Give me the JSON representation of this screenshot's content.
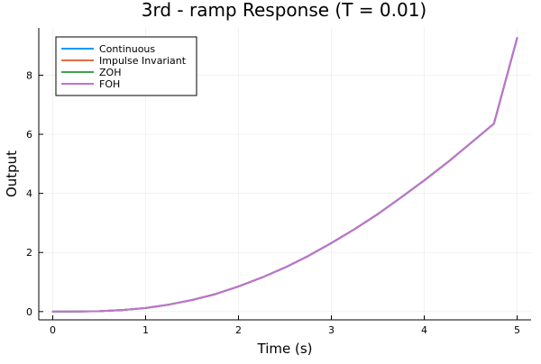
{
  "chart_data": {
    "type": "line",
    "title": "3rd - ramp Response (T = 0.01)",
    "xlabel": "Time (s)",
    "ylabel": "Output",
    "xlim": [
      -0.15,
      5.15
    ],
    "ylim": [
      -0.28,
      9.6
    ],
    "xticks": [
      0,
      1,
      2,
      3,
      4,
      5
    ],
    "yticks": [
      0,
      2,
      4,
      6,
      8
    ],
    "grid": true,
    "legend_position": "top-left",
    "x": [
      0,
      0.25,
      0.5,
      0.75,
      1.0,
      1.25,
      1.5,
      1.75,
      2.0,
      2.25,
      2.5,
      2.75,
      3.0,
      3.25,
      3.5,
      3.75,
      4.0,
      4.25,
      4.5,
      4.75,
      5.0
    ],
    "series": [
      {
        "name": "Continuous",
        "color": "#009af9",
        "values": [
          0,
          0.002,
          0.014,
          0.052,
          0.12,
          0.236,
          0.39,
          0.59,
          0.85,
          1.15,
          1.49,
          1.88,
          2.32,
          2.79,
          3.3,
          3.86,
          4.44,
          5.05,
          5.7,
          6.36,
          9.26
        ]
      },
      {
        "name": "Impulse Invariant",
        "color": "#e26f46",
        "values": [
          0,
          0.002,
          0.014,
          0.052,
          0.12,
          0.236,
          0.39,
          0.59,
          0.85,
          1.15,
          1.49,
          1.88,
          2.32,
          2.79,
          3.3,
          3.86,
          4.44,
          5.05,
          5.7,
          6.36,
          9.26
        ]
      },
      {
        "name": "ZOH",
        "color": "#3da44d",
        "values": [
          0,
          0.002,
          0.014,
          0.052,
          0.12,
          0.236,
          0.39,
          0.59,
          0.85,
          1.15,
          1.49,
          1.88,
          2.32,
          2.79,
          3.3,
          3.86,
          4.44,
          5.05,
          5.7,
          6.36,
          9.26
        ]
      },
      {
        "name": "FOH",
        "color": "#c271d2",
        "values": [
          0,
          0.002,
          0.014,
          0.052,
          0.12,
          0.236,
          0.39,
          0.59,
          0.85,
          1.15,
          1.49,
          1.88,
          2.32,
          2.79,
          3.3,
          3.86,
          4.44,
          5.05,
          5.7,
          6.36,
          9.26
        ]
      }
    ]
  }
}
